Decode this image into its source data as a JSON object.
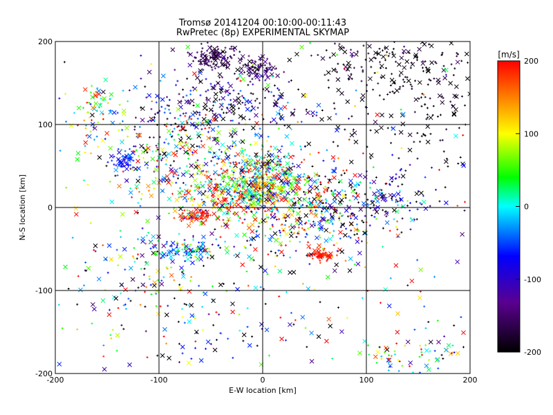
{
  "chart_data": {
    "type": "scatter",
    "title": "Tromsø 20141204 00:10:00-00:11:43",
    "subtitle": "RwPretec (8p) EXPERIMENTAL SKYMAP",
    "xlabel": "E-W location [km]",
    "ylabel": "N-S location [km]",
    "xlim": [
      -200,
      200
    ],
    "ylim": [
      -200,
      200
    ],
    "xticks": [
      "-200",
      "-100",
      "0",
      "100",
      "200"
    ],
    "yticks": [
      "-200",
      "-100",
      "0",
      "100",
      "200"
    ],
    "grid": true,
    "colorbar": {
      "label": "[m/s]",
      "range": [
        -200,
        200
      ],
      "ticks": [
        "-200",
        "-100",
        "0",
        "100",
        "200"
      ],
      "colormap": [
        "#000000",
        "#5a0090",
        "#0000ff",
        "#00ffff",
        "#00ff00",
        "#ffff00",
        "#ff0000"
      ]
    },
    "markers": [
      "x",
      "+"
    ],
    "clusters": [
      {
        "x": -45,
        "y": 182,
        "sx": 12,
        "sy": 7,
        "n": 120,
        "v": -175,
        "vs": 15
      },
      {
        "x": -5,
        "y": 166,
        "sx": 10,
        "sy": 6,
        "n": 70,
        "v": -170,
        "vs": 15
      },
      {
        "x": -135,
        "y": 55,
        "sx": 7,
        "sy": 6,
        "n": 45,
        "v": -95,
        "vs": 20
      },
      {
        "x": -65,
        "y": -10,
        "sx": 8,
        "sy": 3,
        "n": 55,
        "v": 190,
        "vs": 12
      },
      {
        "x": 55,
        "y": -57,
        "sx": 8,
        "sy": 4,
        "n": 60,
        "v": 190,
        "vs": 12
      },
      {
        "x": 0,
        "y": 35,
        "sx": 25,
        "sy": 18,
        "n": 350,
        "v": 50,
        "vs": 130
      },
      {
        "x": -30,
        "y": 15,
        "sx": 35,
        "sy": 20,
        "n": 350,
        "v": 80,
        "vs": 120
      },
      {
        "x": -40,
        "y": 125,
        "sx": 45,
        "sy": 22,
        "n": 250,
        "v": -150,
        "vs": 70
      },
      {
        "x": -80,
        "y": 70,
        "sx": 45,
        "sy": 25,
        "n": 250,
        "v": -20,
        "vs": 140
      },
      {
        "x": -80,
        "y": -50,
        "sx": 25,
        "sy": 8,
        "n": 120,
        "v": -40,
        "vs": 80
      },
      {
        "x": 40,
        "y": -10,
        "sx": 40,
        "sy": 25,
        "n": 300,
        "v": 0,
        "vs": 170
      },
      {
        "x": 110,
        "y": 10,
        "sx": 35,
        "sy": 20,
        "n": 150,
        "v": -150,
        "vs": 80
      },
      {
        "x": 150,
        "y": 140,
        "sx": 40,
        "sy": 40,
        "n": 200,
        "v": -195,
        "vs": 10
      },
      {
        "x": 110,
        "y": 180,
        "sx": 45,
        "sy": 15,
        "n": 100,
        "v": -190,
        "vs": 20
      },
      {
        "x": -160,
        "y": 120,
        "sx": 15,
        "sy": 15,
        "n": 60,
        "v": 50,
        "vs": 100
      },
      {
        "x": -120,
        "y": -90,
        "sx": 30,
        "sy": 25,
        "n": 80,
        "v": 0,
        "vs": 150
      },
      {
        "x": 140,
        "y": -180,
        "sx": 20,
        "sy": 12,
        "n": 50,
        "v": 50,
        "vs": 150
      },
      {
        "x": -50,
        "y": -150,
        "sx": 60,
        "sy": 30,
        "n": 80,
        "v": -100,
        "vs": 130
      },
      {
        "x": 0,
        "y": 0,
        "sx": 110,
        "sy": 110,
        "n": 400,
        "v": 0,
        "vs": 200
      },
      {
        "x": 180,
        "y": -160,
        "sx": 10,
        "sy": 10,
        "n": 20,
        "v": 0,
        "vs": 200
      }
    ]
  }
}
